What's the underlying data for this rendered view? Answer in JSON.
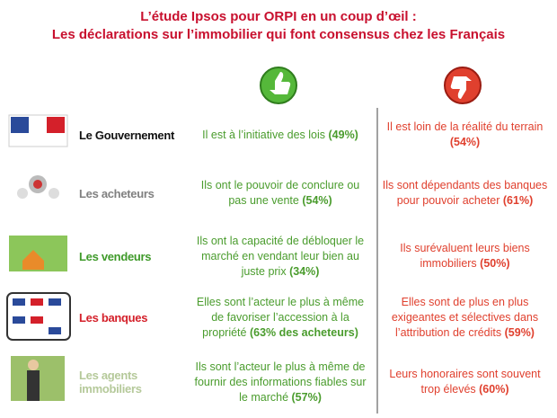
{
  "header": {
    "title": "L’étude Ipsos pour ORPI en un coup d’œil :",
    "subtitle": "Les déclarations sur l’immobilier qui font consensus chez les Français"
  },
  "rows": [
    {
      "label": "Le Gouvernement",
      "color": "#111111",
      "positive": {
        "text": "Il est à l’initiative des lois",
        "stat": "(49%)"
      },
      "negative": {
        "text": "Il est loin de la réalité du terrain",
        "stat": "(54%)"
      }
    },
    {
      "label": "Les acheteurs",
      "color": "#808080",
      "positive": {
        "text": "Ils ont le pouvoir de conclure ou pas une vente",
        "stat": "(54%)"
      },
      "negative": {
        "text": "Ils sont dépendants des banques pour pouvoir acheter",
        "stat": "(61%)"
      }
    },
    {
      "label": "Les vendeurs",
      "color": "#3f9a2a",
      "positive": {
        "text": "Ils ont la capacité de débloquer le marché en vendant leur bien au juste prix",
        "stat": "(34%)"
      },
      "negative": {
        "text": "Ils surévaluent leurs biens immobiliers",
        "stat": "(50%)"
      }
    },
    {
      "label": "Les banques",
      "color": "#d4202a",
      "positive": {
        "text": "Elles sont l’acteur le plus à même de favoriser l’accession à la propriété",
        "stat": "(63% des acheteurs)"
      },
      "negative": {
        "text": "Elles sont de plus en plus exigeantes et sélectives dans l’attribution de crédits",
        "stat": "(59%)"
      }
    },
    {
      "label": "Les agents immobiliers",
      "color": "#b5c99a",
      "positive": {
        "text": "Ils sont l’acteur le plus à même de fournir des informations fiables sur le marché",
        "stat": "(57%)"
      },
      "negative": {
        "text": "Leurs honoraires sont souvent trop élevés",
        "stat": "(60%)"
      }
    }
  ]
}
